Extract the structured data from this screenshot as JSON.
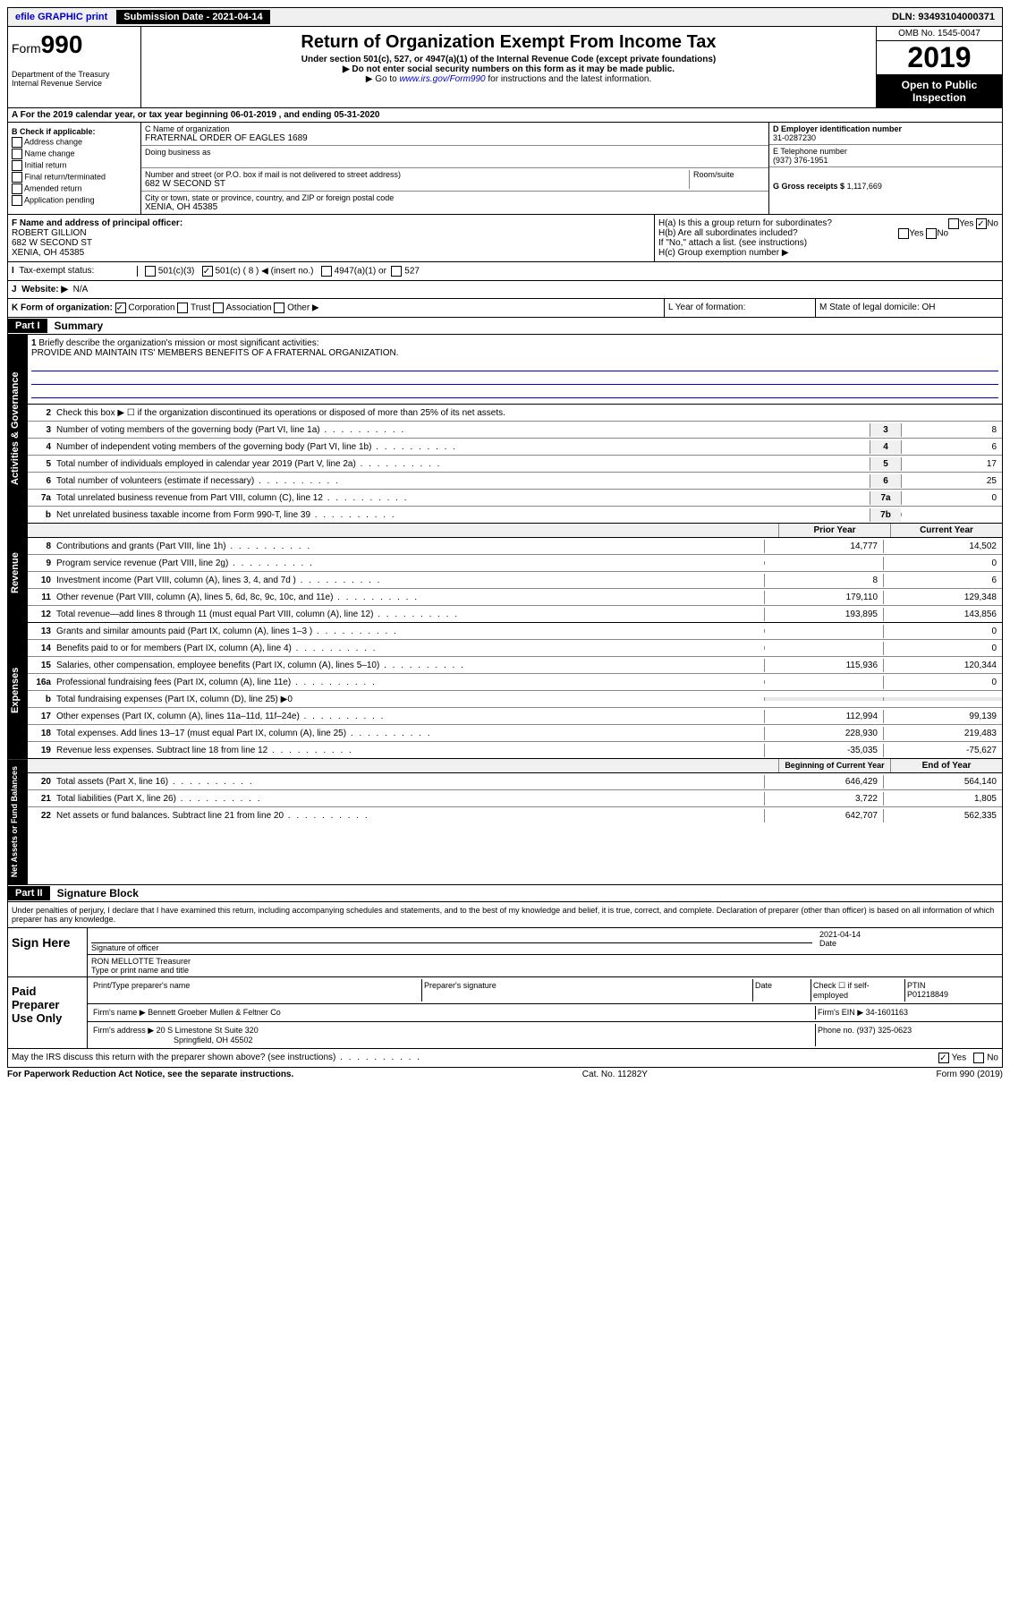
{
  "top": {
    "efile": "efile GRAPHIC print",
    "submission": "Submission Date - 2021-04-14",
    "dln": "DLN: 93493104000371"
  },
  "header": {
    "form_label": "Form",
    "form_num": "990",
    "dept": "Department of the Treasury\nInternal Revenue Service",
    "title": "Return of Organization Exempt From Income Tax",
    "sub1": "Under section 501(c), 527, or 4947(a)(1) of the Internal Revenue Code (except private foundations)",
    "sub2": "▶ Do not enter social security numbers on this form as it may be made public.",
    "sub3_pre": "▶ Go to ",
    "sub3_link": "www.irs.gov/Form990",
    "sub3_post": " for instructions and the latest information.",
    "omb": "OMB No. 1545-0047",
    "year": "2019",
    "open": "Open to Public Inspection"
  },
  "rowA": "A For the 2019 calendar year, or tax year beginning 06-01-2019    , and ending 05-31-2020",
  "colB": {
    "title": "B Check if applicable:",
    "items": [
      "Address change",
      "Name change",
      "Initial return",
      "Final return/terminated",
      "Amended return",
      "Application pending"
    ]
  },
  "colC": {
    "name_label": "C Name of organization",
    "name": "FRATERNAL ORDER OF EAGLES 1689",
    "dba_label": "Doing business as",
    "addr_label": "Number and street (or P.O. box if mail is not delivered to street address)",
    "addr": "682 W SECOND ST",
    "room_label": "Room/suite",
    "city_label": "City or town, state or province, country, and ZIP or foreign postal code",
    "city": "XENIA, OH  45385"
  },
  "colD": {
    "ein_label": "D Employer identification number",
    "ein": "31-0287230",
    "phone_label": "E Telephone number",
    "phone": "(937) 376-1951",
    "gross_label": "G Gross receipts $",
    "gross": "1,117,669"
  },
  "rowF": {
    "label": "F  Name and address of principal officer:",
    "name": "ROBERT GILLION",
    "addr": "682 W SECOND ST",
    "city": "XENIA, OH  45385"
  },
  "rowH": {
    "a": "H(a)  Is this a group return for subordinates?",
    "a_no": "No",
    "b": "H(b)  Are all subordinates included?",
    "b_note": "If \"No,\" attach a list. (see instructions)",
    "c": "H(c)  Group exemption number ▶"
  },
  "taxStatus": {
    "label_I": "I",
    "label": "Tax-exempt status:",
    "c3": "501(c)(3)",
    "c": "501(c) ( 8 ) ◀ (insert no.)",
    "a1": "4947(a)(1) or",
    "527": "527"
  },
  "rowJ": {
    "label_J": "J",
    "label": "Website: ▶",
    "val": "N/A"
  },
  "rowK": {
    "label": "K Form of organization:",
    "corp": "Corporation",
    "trust": "Trust",
    "assoc": "Association",
    "other": "Other ▶",
    "L": "L Year of formation:",
    "M": "M State of legal domicile: OH"
  },
  "part1": {
    "header": "Part I",
    "title": "Summary"
  },
  "governance": {
    "tab": "Activities & Governance",
    "q1": "Briefly describe the organization's mission or most significant activities:",
    "mission": "PROVIDE AND MAINTAIN ITS' MEMBERS BENEFITS OF A FRATERNAL ORGANIZATION.",
    "q2": "Check this box ▶ ☐  if the organization discontinued its operations or disposed of more than 25% of its net assets.",
    "lines": [
      {
        "n": "3",
        "d": "Number of voting members of the governing body (Part VI, line 1a)",
        "box": "3",
        "v": "8"
      },
      {
        "n": "4",
        "d": "Number of independent voting members of the governing body (Part VI, line 1b)",
        "box": "4",
        "v": "6"
      },
      {
        "n": "5",
        "d": "Total number of individuals employed in calendar year 2019 (Part V, line 2a)",
        "box": "5",
        "v": "17"
      },
      {
        "n": "6",
        "d": "Total number of volunteers (estimate if necessary)",
        "box": "6",
        "v": "25"
      },
      {
        "n": "7a",
        "d": "Total unrelated business revenue from Part VIII, column (C), line 12",
        "box": "7a",
        "v": "0"
      },
      {
        "n": "b",
        "d": "Net unrelated business taxable income from Form 990-T, line 39",
        "box": "7b",
        "v": ""
      }
    ]
  },
  "revenue": {
    "tab": "Revenue",
    "h1": "Prior Year",
    "h2": "Current Year",
    "lines": [
      {
        "n": "8",
        "d": "Contributions and grants (Part VIII, line 1h)",
        "v1": "14,777",
        "v2": "14,502"
      },
      {
        "n": "9",
        "d": "Program service revenue (Part VIII, line 2g)",
        "v1": "",
        "v2": "0"
      },
      {
        "n": "10",
        "d": "Investment income (Part VIII, column (A), lines 3, 4, and 7d )",
        "v1": "8",
        "v2": "6"
      },
      {
        "n": "11",
        "d": "Other revenue (Part VIII, column (A), lines 5, 6d, 8c, 9c, 10c, and 11e)",
        "v1": "179,110",
        "v2": "129,348"
      },
      {
        "n": "12",
        "d": "Total revenue—add lines 8 through 11 (must equal Part VIII, column (A), line 12)",
        "v1": "193,895",
        "v2": "143,856"
      }
    ]
  },
  "expenses": {
    "tab": "Expenses",
    "lines": [
      {
        "n": "13",
        "d": "Grants and similar amounts paid (Part IX, column (A), lines 1–3 )",
        "v1": "",
        "v2": "0"
      },
      {
        "n": "14",
        "d": "Benefits paid to or for members (Part IX, column (A), line 4)",
        "v1": "",
        "v2": "0"
      },
      {
        "n": "15",
        "d": "Salaries, other compensation, employee benefits (Part IX, column (A), lines 5–10)",
        "v1": "115,936",
        "v2": "120,344"
      },
      {
        "n": "16a",
        "d": "Professional fundraising fees (Part IX, column (A), line 11e)",
        "v1": "",
        "v2": "0"
      },
      {
        "n": "b",
        "d": "Total fundraising expenses (Part IX, column (D), line 25) ▶0",
        "v1": "",
        "v2": ""
      },
      {
        "n": "17",
        "d": "Other expenses (Part IX, column (A), lines 11a–11d, 11f–24e)",
        "v1": "112,994",
        "v2": "99,139"
      },
      {
        "n": "18",
        "d": "Total expenses. Add lines 13–17 (must equal Part IX, column (A), line 25)",
        "v1": "228,930",
        "v2": "219,483"
      },
      {
        "n": "19",
        "d": "Revenue less expenses. Subtract line 18 from line 12",
        "v1": "-35,035",
        "v2": "-75,627"
      }
    ]
  },
  "netassets": {
    "tab": "Net Assets or Fund Balances",
    "h1": "Beginning of Current Year",
    "h2": "End of Year",
    "lines": [
      {
        "n": "20",
        "d": "Total assets (Part X, line 16)",
        "v1": "646,429",
        "v2": "564,140"
      },
      {
        "n": "21",
        "d": "Total liabilities (Part X, line 26)",
        "v1": "3,722",
        "v2": "1,805"
      },
      {
        "n": "22",
        "d": "Net assets or fund balances. Subtract line 21 from line 20",
        "v1": "642,707",
        "v2": "562,335"
      }
    ]
  },
  "part2": {
    "header": "Part II",
    "title": "Signature Block",
    "perjury": "Under penalties of perjury, I declare that I have examined this return, including accompanying schedules and statements, and to the best of my knowledge and belief, it is true, correct, and complete. Declaration of preparer (other than officer) is based on all information of which preparer has any knowledge."
  },
  "sign": {
    "label": "Sign Here",
    "sig_label": "Signature of officer",
    "date": "2021-04-14",
    "date_label": "Date",
    "name": "RON MELLOTTE Treasurer",
    "name_label": "Type or print name and title"
  },
  "preparer": {
    "label": "Paid Preparer Use Only",
    "col1": "Print/Type preparer's name",
    "col2": "Preparer's signature",
    "col3": "Date",
    "col4": "Check ☐ if self-employed",
    "ptin_label": "PTIN",
    "ptin": "P01218849",
    "firm_label": "Firm's name    ▶",
    "firm": "Bennett Groeber Mullen & Feltner Co",
    "ein_label": "Firm's EIN ▶",
    "ein": "34-1601163",
    "addr_label": "Firm's address ▶",
    "addr": "20 S Limestone St Suite 320",
    "city": "Springfield, OH  45502",
    "phone_label": "Phone no.",
    "phone": "(937) 325-0623"
  },
  "footer": {
    "discuss": "May the IRS discuss this return with the preparer shown above? (see instructions)",
    "yes": "Yes",
    "no": "No",
    "paperwork": "For Paperwork Reduction Act Notice, see the separate instructions.",
    "cat": "Cat. No. 11282Y",
    "form": "Form 990 (2019)"
  }
}
